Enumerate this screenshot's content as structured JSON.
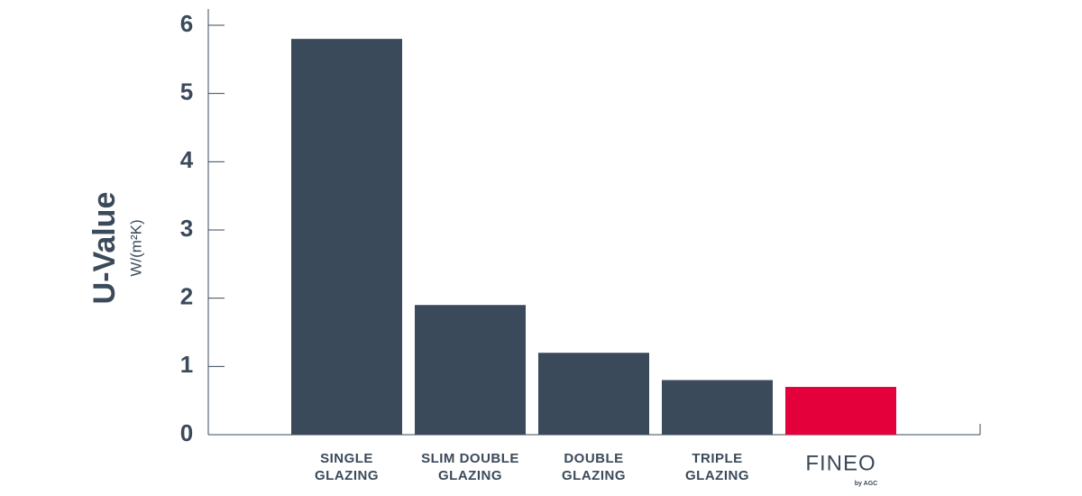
{
  "chart_data": {
    "type": "bar",
    "y_title": "U-Value",
    "y_unit": "W/(m²K)",
    "categories": [
      [
        "SINGLE",
        "GLAZING"
      ],
      [
        "SLIM DOUBLE",
        "GLAZING"
      ],
      [
        "DOUBLE",
        "GLAZING"
      ],
      [
        "TRIPLE",
        "GLAZING"
      ],
      [
        "FINEO"
      ]
    ],
    "logo_subtitle": "by AGC",
    "values": [
      5.8,
      1.9,
      1.2,
      0.8,
      0.7
    ],
    "colors": [
      "#3b4a5a",
      "#3b4a5a",
      "#3b4a5a",
      "#3b4a5a",
      "#e4003b"
    ],
    "ylim": [
      0,
      6
    ],
    "yticks": [
      0,
      1,
      2,
      3,
      4,
      5,
      6
    ],
    "grid": false
  }
}
